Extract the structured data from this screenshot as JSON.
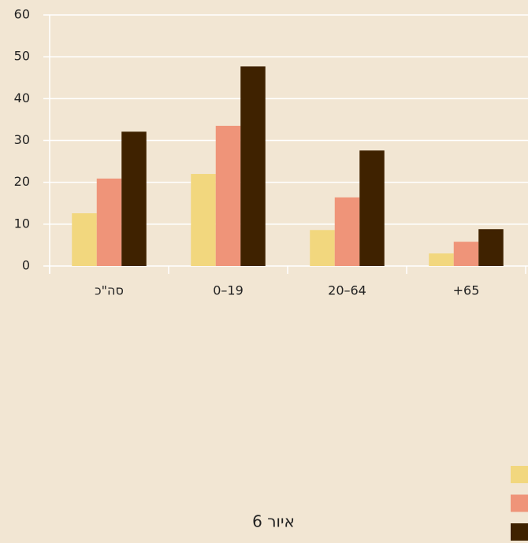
{
  "chart_data": {
    "type": "bar",
    "title": "איור 6",
    "categories": [
      "סה\"כ",
      "0–19",
      "20–64",
      "+65"
    ],
    "series": [
      {
        "color": "#f2d77e",
        "values": [
          12.6,
          22.0,
          8.6,
          3.0
        ]
      },
      {
        "color": "#ef9479",
        "values": [
          20.9,
          33.5,
          16.4,
          5.8
        ]
      },
      {
        "color": "#3f2200",
        "values": [
          32.1,
          47.7,
          27.6,
          8.8
        ]
      }
    ],
    "ylim": [
      0,
      60
    ],
    "yticks": [
      0,
      10,
      20,
      30,
      40,
      50,
      60
    ],
    "grid": true
  }
}
